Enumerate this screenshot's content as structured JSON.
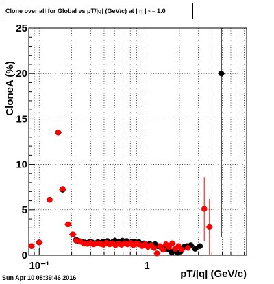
{
  "title": "Clone  over all for Global vs pT/|q| (GeV/c) at |  η | <= 1.0",
  "timestamp": "Sun Apr 10 08:39:46 2016",
  "chart_data": {
    "type": "scatter",
    "title": "Clone  over all for Global vs pT/|q| (GeV/c) at |  η | <= 1.0",
    "xlabel": "pT/|q| (GeV/c)",
    "ylabel": "CloneA (%)",
    "x_scale": "log",
    "xlim": [
      0.08,
      8.4
    ],
    "ylim": [
      0,
      25
    ],
    "grid": true,
    "x_tick_labels": [
      {
        "value": 0.1,
        "label": "10⁻¹"
      },
      {
        "value": 1,
        "label": "1"
      }
    ],
    "y_ticks": [
      0,
      5,
      10,
      15,
      20,
      25
    ],
    "series": [
      {
        "color": "#000000",
        "points": [
          {
            "x": 0.085,
            "y": 1.0
          },
          {
            "x": 0.1,
            "y": 1.4
          },
          {
            "x": 0.125,
            "y": 6.1
          },
          {
            "x": 0.15,
            "y": 13.5
          },
          {
            "x": 0.165,
            "y": 7.2
          },
          {
            "x": 0.185,
            "y": 3.4
          },
          {
            "x": 0.205,
            "y": 2.3
          },
          {
            "x": 0.22,
            "y": 1.7
          },
          {
            "x": 0.235,
            "y": 1.55
          },
          {
            "x": 0.25,
            "y": 1.45
          },
          {
            "x": 0.265,
            "y": 1.4
          },
          {
            "x": 0.28,
            "y": 1.35
          },
          {
            "x": 0.295,
            "y": 1.5
          },
          {
            "x": 0.31,
            "y": 1.4
          },
          {
            "x": 0.33,
            "y": 1.3
          },
          {
            "x": 0.35,
            "y": 1.45
          },
          {
            "x": 0.37,
            "y": 1.35
          },
          {
            "x": 0.39,
            "y": 1.5
          },
          {
            "x": 0.41,
            "y": 1.4
          },
          {
            "x": 0.43,
            "y": 1.55
          },
          {
            "x": 0.455,
            "y": 1.3
          },
          {
            "x": 0.48,
            "y": 1.45
          },
          {
            "x": 0.505,
            "y": 1.6
          },
          {
            "x": 0.53,
            "y": 1.35
          },
          {
            "x": 0.56,
            "y": 1.5
          },
          {
            "x": 0.59,
            "y": 1.6
          },
          {
            "x": 0.62,
            "y": 1.4
          },
          {
            "x": 0.65,
            "y": 1.55
          },
          {
            "x": 0.68,
            "y": 1.3
          },
          {
            "x": 0.72,
            "y": 1.45
          },
          {
            "x": 0.76,
            "y": 1.5
          },
          {
            "x": 0.8,
            "y": 1.35
          },
          {
            "x": 0.84,
            "y": 1.45
          },
          {
            "x": 0.89,
            "y": 1.2
          },
          {
            "x": 0.94,
            "y": 1.3
          },
          {
            "x": 1.0,
            "y": 1.15
          },
          {
            "x": 1.06,
            "y": 1.25
          },
          {
            "x": 1.12,
            "y": 1.1
          },
          {
            "x": 1.19,
            "y": 1.2
          },
          {
            "x": 1.26,
            "y": 1.0
          },
          {
            "x": 1.34,
            "y": 0.9
          },
          {
            "x": 1.42,
            "y": 0.8
          },
          {
            "x": 1.5,
            "y": 0.7
          },
          {
            "x": 1.6,
            "y": 0.6
          },
          {
            "x": 1.7,
            "y": 0.3
          },
          {
            "x": 1.8,
            "y": 0.5
          },
          {
            "x": 1.92,
            "y": 0.25
          },
          {
            "x": 2.05,
            "y": 0.4
          },
          {
            "x": 2.2,
            "y": 0.9
          },
          {
            "x": 2.35,
            "y": 1.0
          },
          {
            "x": 2.55,
            "y": 1.1
          },
          {
            "x": 2.8,
            "y": 0.7
          },
          {
            "x": 3.1,
            "y": 1.0
          },
          {
            "x": 4.9,
            "y": 20.0
          }
        ],
        "error_bars": [
          {
            "x": 4.9,
            "low": 2.0,
            "high": 25.0
          }
        ]
      },
      {
        "color": "#ff0000",
        "points": [
          {
            "x": 0.085,
            "y": 1.0
          },
          {
            "x": 0.1,
            "y": 1.4
          },
          {
            "x": 0.125,
            "y": 6.1
          },
          {
            "x": 0.15,
            "y": 13.5
          },
          {
            "x": 0.165,
            "y": 7.3
          },
          {
            "x": 0.185,
            "y": 3.4
          },
          {
            "x": 0.205,
            "y": 2.3
          },
          {
            "x": 0.22,
            "y": 1.6
          },
          {
            "x": 0.24,
            "y": 1.5
          },
          {
            "x": 0.26,
            "y": 1.3
          },
          {
            "x": 0.28,
            "y": 1.25
          },
          {
            "x": 0.3,
            "y": 1.35
          },
          {
            "x": 0.32,
            "y": 1.2
          },
          {
            "x": 0.345,
            "y": 1.3
          },
          {
            "x": 0.37,
            "y": 1.25
          },
          {
            "x": 0.395,
            "y": 1.15
          },
          {
            "x": 0.42,
            "y": 1.35
          },
          {
            "x": 0.45,
            "y": 1.2
          },
          {
            "x": 0.48,
            "y": 1.3
          },
          {
            "x": 0.51,
            "y": 1.1
          },
          {
            "x": 0.545,
            "y": 1.25
          },
          {
            "x": 0.58,
            "y": 1.15
          },
          {
            "x": 0.62,
            "y": 1.3
          },
          {
            "x": 0.66,
            "y": 1.2
          },
          {
            "x": 0.7,
            "y": 1.35
          },
          {
            "x": 0.745,
            "y": 1.1
          },
          {
            "x": 0.79,
            "y": 1.3
          },
          {
            "x": 0.84,
            "y": 1.2
          },
          {
            "x": 0.9,
            "y": 1.0
          },
          {
            "x": 0.96,
            "y": 1.2
          },
          {
            "x": 1.02,
            "y": 0.9
          },
          {
            "x": 1.09,
            "y": 1.1
          },
          {
            "x": 1.16,
            "y": 0.8
          },
          {
            "x": 1.24,
            "y": 0.2
          },
          {
            "x": 1.32,
            "y": 1.0
          },
          {
            "x": 1.41,
            "y": 0.6
          },
          {
            "x": 1.5,
            "y": 1.2
          },
          {
            "x": 1.6,
            "y": 0.9
          },
          {
            "x": 1.71,
            "y": 1.3
          },
          {
            "x": 1.83,
            "y": 0.7
          },
          {
            "x": 1.96,
            "y": 1.0
          },
          {
            "x": 2.1,
            "y": 0.6
          },
          {
            "x": 2.4,
            "y": 0.8
          },
          {
            "x": 3.4,
            "y": 5.1
          },
          {
            "x": 3.8,
            "y": 3.1
          }
        ],
        "error_bars": [
          {
            "x": 3.4,
            "low": 1.5,
            "high": 8.6
          },
          {
            "x": 3.8,
            "low": 0.0,
            "high": 6.2
          }
        ]
      }
    ]
  }
}
